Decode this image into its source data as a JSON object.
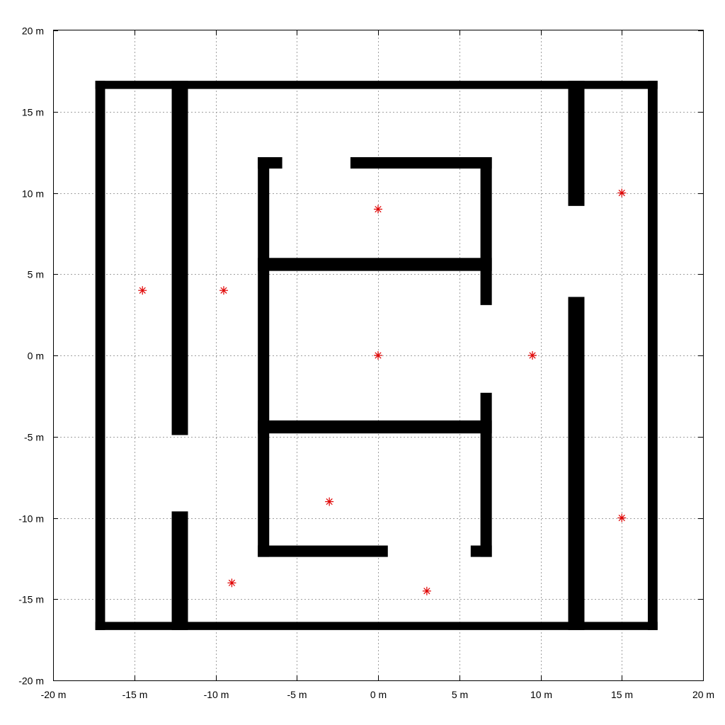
{
  "chart_data": {
    "type": "scatter",
    "title": "",
    "xlabel": "",
    "ylabel": "",
    "xlim": [
      -20,
      20
    ],
    "ylim": [
      -20,
      20
    ],
    "grid": true,
    "x_ticks": [
      {
        "value": -20,
        "label": "-20 m"
      },
      {
        "value": -15,
        "label": "-15 m"
      },
      {
        "value": -10,
        "label": "-10 m"
      },
      {
        "value": -5,
        "label": "-5 m"
      },
      {
        "value": 0,
        "label": "0 m"
      },
      {
        "value": 5,
        "label": "5 m"
      },
      {
        "value": 10,
        "label": "10 m"
      },
      {
        "value": 15,
        "label": "15 m"
      },
      {
        "value": 20,
        "label": "20 m"
      }
    ],
    "y_ticks": [
      {
        "value": 20,
        "label": "20 m"
      },
      {
        "value": 15,
        "label": "15 m"
      },
      {
        "value": 10,
        "label": "10 m"
      },
      {
        "value": 5,
        "label": "5 m"
      },
      {
        "value": 0,
        "label": "0 m"
      },
      {
        "value": -5,
        "label": "-5 m"
      },
      {
        "value": -10,
        "label": "-10 m"
      },
      {
        "value": -15,
        "label": "-15 m"
      },
      {
        "value": -20,
        "label": "-20 m"
      }
    ],
    "walls": [
      {
        "x": [
          -17.4,
          17.2
        ],
        "y": [
          16.4,
          16.9
        ]
      },
      {
        "x": [
          -17.4,
          17.2
        ],
        "y": [
          -16.9,
          -16.4
        ]
      },
      {
        "x": [
          -17.4,
          -16.8
        ],
        "y": [
          -16.9,
          16.9
        ]
      },
      {
        "x": [
          16.6,
          17.2
        ],
        "y": [
          -16.9,
          16.9
        ]
      },
      {
        "x": [
          -12.7,
          -11.7
        ],
        "y": [
          -4.9,
          16.9
        ]
      },
      {
        "x": [
          -12.7,
          -11.7
        ],
        "y": [
          -16.9,
          -9.6
        ]
      },
      {
        "x": [
          11.7,
          12.7
        ],
        "y": [
          9.2,
          16.9
        ]
      },
      {
        "x": [
          11.7,
          12.7
        ],
        "y": [
          -16.9,
          3.6
        ]
      },
      {
        "x": [
          -7.4,
          -5.9
        ],
        "y": [
          11.5,
          12.2
        ]
      },
      {
        "x": [
          -1.7,
          7.0
        ],
        "y": [
          11.5,
          12.2
        ]
      },
      {
        "x": [
          -7.4,
          -6.7
        ],
        "y": [
          -12.4,
          12.2
        ]
      },
      {
        "x": [
          6.3,
          7.0
        ],
        "y": [
          3.1,
          12.2
        ]
      },
      {
        "x": [
          -7.4,
          7.0
        ],
        "y": [
          5.2,
          6.0
        ]
      },
      {
        "x": [
          -7.4,
          7.0
        ],
        "y": [
          -4.8,
          -4.0
        ]
      },
      {
        "x": [
          6.3,
          7.0
        ],
        "y": [
          -12.4,
          -2.3
        ]
      },
      {
        "x": [
          -7.4,
          0.6
        ],
        "y": [
          -12.4,
          -11.7
        ]
      },
      {
        "x": [
          5.7,
          7.0
        ],
        "y": [
          -12.4,
          -11.7
        ]
      }
    ],
    "series": [
      {
        "marker": "asterisk",
        "color": "#e00000",
        "points": [
          {
            "x": -14.5,
            "y": 4
          },
          {
            "x": -9.5,
            "y": 4
          },
          {
            "x": 0,
            "y": 9
          },
          {
            "x": 0,
            "y": 0
          },
          {
            "x": 9.5,
            "y": 0
          },
          {
            "x": 15,
            "y": 10
          },
          {
            "x": 15,
            "y": -10
          },
          {
            "x": -3,
            "y": -9
          },
          {
            "x": -9,
            "y": -14
          },
          {
            "x": 3,
            "y": -14.5
          }
        ]
      }
    ]
  }
}
